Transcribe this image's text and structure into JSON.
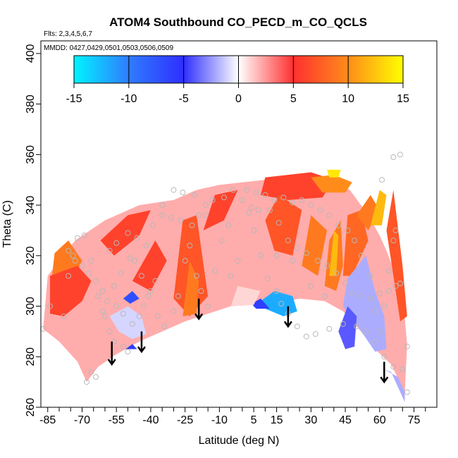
{
  "chart_data": {
    "type": "heatmap",
    "title": "ATOM4 Southbound CO_PECD_m_CO_QCLS",
    "flights_note": "Flts: 2,3,4,5,6,7",
    "dates_note": "MMDD: 0427,0429,0501,0503,0506,0509",
    "xlabel": "Latitude (deg N)",
    "ylabel": "Theta (C)",
    "xlim": [
      -88,
      85
    ],
    "ylim": [
      260,
      405
    ],
    "x_ticks": [
      -85,
      -70,
      -55,
      -40,
      -25,
      -10,
      5,
      15,
      30,
      45,
      60,
      75
    ],
    "x_minor_ticks": [
      -80,
      -75,
      -65,
      -60,
      -50,
      -45,
      -35,
      -30,
      -20,
      -15,
      -5,
      0,
      10,
      20,
      25,
      35,
      40,
      50,
      55,
      65,
      70,
      80
    ],
    "y_ticks": [
      260,
      280,
      300,
      320,
      340,
      360,
      380,
      400
    ],
    "colorbar": {
      "ticks": [
        -15,
        -10,
        -5,
        0,
        5,
        10,
        15
      ],
      "range": [
        -15,
        15
      ],
      "stops": [
        {
          "v": -15,
          "color": "#00f4ff"
        },
        {
          "v": -10,
          "color": "#2f7cff"
        },
        {
          "v": -5,
          "color": "#2f2fff"
        },
        {
          "v": 0,
          "color": "#ffffff"
        },
        {
          "v": 5,
          "color": "#ff3030"
        },
        {
          "v": 10,
          "color": "#ff8c1a"
        },
        {
          "v": 15,
          "color": "#ffff00"
        }
      ]
    },
    "field_polygons": [
      {
        "value": 2,
        "points": [
          [
            -87,
            291
          ],
          [
            -85,
            312
          ],
          [
            -80,
            318
          ],
          [
            -73,
            326
          ],
          [
            -60,
            334
          ],
          [
            -45,
            340
          ],
          [
            -30,
            342
          ],
          [
            -20,
            346
          ],
          [
            -10,
            348
          ],
          [
            0,
            349
          ],
          [
            10,
            350
          ],
          [
            20,
            351
          ],
          [
            30,
            351
          ],
          [
            40,
            349
          ],
          [
            47,
            346
          ],
          [
            55,
            336
          ],
          [
            60,
            328
          ],
          [
            63,
            322
          ],
          [
            68,
            310
          ],
          [
            71,
            295
          ],
          [
            72,
            285
          ],
          [
            71,
            266
          ],
          [
            65,
            277
          ],
          [
            58,
            283
          ],
          [
            50,
            292
          ],
          [
            44,
            298
          ],
          [
            36,
            302
          ],
          [
            25,
            303
          ],
          [
            15,
            301
          ],
          [
            5,
            300.5
          ],
          [
            -5,
            300
          ],
          [
            -15,
            297
          ],
          [
            -25,
            294
          ],
          [
            -35,
            290
          ],
          [
            -45,
            286
          ],
          [
            -55,
            281
          ],
          [
            -63,
            276
          ],
          [
            -68,
            270
          ],
          [
            -72,
            278
          ],
          [
            -80,
            286
          ]
        ]
      },
      {
        "value": 9,
        "points": [
          [
            -84,
            305
          ],
          [
            -82,
            321
          ],
          [
            -76,
            326
          ],
          [
            -70,
            318
          ],
          [
            -74,
            310
          ],
          [
            -80,
            304
          ]
        ]
      },
      {
        "value": 6,
        "points": [
          [
            -84,
            297
          ],
          [
            -84,
            312
          ],
          [
            -72,
            316
          ],
          [
            -66,
            310
          ],
          [
            -70,
            302
          ],
          [
            -78,
            296
          ]
        ]
      },
      {
        "value": 6,
        "points": [
          [
            -62,
            326
          ],
          [
            -50,
            336
          ],
          [
            -40,
            338
          ],
          [
            -45,
            328
          ],
          [
            -56,
            320
          ]
        ]
      },
      {
        "value": 6,
        "points": [
          [
            -48,
            310
          ],
          [
            -38,
            326
          ],
          [
            -33,
            318
          ],
          [
            -40,
            306
          ]
        ]
      },
      {
        "value": 7,
        "points": [
          [
            -30,
            303
          ],
          [
            -26,
            334
          ],
          [
            -20,
            336
          ],
          [
            -15,
            304
          ],
          [
            -23,
            296
          ]
        ]
      },
      {
        "value": 9,
        "points": [
          [
            -26,
            296
          ],
          [
            -23,
            318
          ],
          [
            -19,
            310
          ],
          [
            -20,
            297
          ]
        ]
      },
      {
        "value": 6,
        "points": [
          [
            -17,
            330
          ],
          [
            -12,
            344
          ],
          [
            -2,
            346
          ],
          [
            -8,
            334
          ]
        ]
      },
      {
        "value": 6,
        "points": [
          [
            8,
            344
          ],
          [
            10,
            351
          ],
          [
            30,
            353
          ],
          [
            40,
            350
          ],
          [
            35,
            343
          ],
          [
            20,
            342
          ]
        ]
      },
      {
        "value": 10,
        "points": [
          [
            30,
            351
          ],
          [
            40,
            352
          ],
          [
            48,
            349
          ],
          [
            45,
            345
          ],
          [
            35,
            345
          ]
        ]
      },
      {
        "value": 14,
        "points": [
          [
            37,
            354
          ],
          [
            43,
            354
          ],
          [
            42,
            351
          ],
          [
            38,
            351
          ]
        ]
      },
      {
        "value": 7,
        "points": [
          [
            10,
            334
          ],
          [
            16,
            344
          ],
          [
            26,
            338
          ],
          [
            22,
            320
          ],
          [
            14,
            322
          ]
        ]
      },
      {
        "value": 9,
        "points": [
          [
            26,
            316
          ],
          [
            30,
            336
          ],
          [
            37,
            330
          ],
          [
            33,
            312
          ]
        ]
      },
      {
        "value": 9,
        "points": [
          [
            36,
            308
          ],
          [
            38,
            326
          ],
          [
            43,
            334
          ],
          [
            44,
            316
          ],
          [
            41,
            306
          ]
        ]
      },
      {
        "value": 12,
        "points": [
          [
            38,
            312
          ],
          [
            40,
            330
          ],
          [
            42,
            328
          ],
          [
            41,
            312
          ]
        ]
      },
      {
        "value": 8,
        "points": [
          [
            44,
            312
          ],
          [
            46,
            336
          ],
          [
            52,
            338
          ],
          [
            55,
            326
          ],
          [
            48,
            312
          ]
        ]
      },
      {
        "value": 9,
        "points": [
          [
            50,
            336
          ],
          [
            56,
            344
          ],
          [
            60,
            338
          ],
          [
            55,
            330
          ]
        ]
      },
      {
        "value": 12,
        "points": [
          [
            56,
            332
          ],
          [
            60,
            346
          ],
          [
            63,
            344
          ],
          [
            61,
            332
          ]
        ]
      },
      {
        "value": 7,
        "points": [
          [
            63,
            330
          ],
          [
            66,
            346
          ],
          [
            70,
            316
          ],
          [
            72,
            296
          ],
          [
            69,
            294
          ],
          [
            66,
            312
          ]
        ]
      },
      {
        "value": -2,
        "points": [
          [
            44,
            300
          ],
          [
            46,
            311
          ],
          [
            54,
            320
          ],
          [
            58,
            306
          ],
          [
            62,
            296
          ],
          [
            63,
            283
          ],
          [
            58,
            282
          ],
          [
            52,
            290
          ]
        ]
      },
      {
        "value": -4,
        "points": [
          [
            42,
            290
          ],
          [
            46,
            300
          ],
          [
            50,
            296
          ],
          [
            49,
            284
          ],
          [
            45,
            283
          ]
        ]
      },
      {
        "value": -2,
        "points": [
          [
            62,
            275
          ],
          [
            68,
            272
          ],
          [
            71,
            266
          ],
          [
            71,
            262
          ],
          [
            65,
            274
          ]
        ]
      },
      {
        "value": -12,
        "points": [
          [
            8,
            302
          ],
          [
            14,
            306
          ],
          [
            22,
            304
          ],
          [
            24,
            298
          ],
          [
            18,
            296
          ],
          [
            10,
            299
          ]
        ]
      },
      {
        "value": -6,
        "points": [
          [
            4,
            301
          ],
          [
            8,
            303
          ],
          [
            12,
            299
          ],
          [
            6,
            299
          ]
        ]
      },
      {
        "value": -7,
        "points": [
          [
            -52,
            303
          ],
          [
            -48,
            306
          ],
          [
            -45,
            303
          ],
          [
            -49,
            301
          ]
        ]
      },
      {
        "value": -6,
        "points": [
          [
            -51,
            283
          ],
          [
            -48,
            285
          ],
          [
            -46,
            283
          ]
        ]
      },
      {
        "value": -1,
        "points": [
          [
            -58,
            296
          ],
          [
            -50,
            300
          ],
          [
            -44,
            296
          ],
          [
            -42,
            289
          ],
          [
            -48,
            287
          ],
          [
            -54,
            290
          ]
        ]
      },
      {
        "value": 1,
        "points": [
          [
            -5,
            300
          ],
          [
            5,
            300.5
          ],
          [
            8,
            306
          ],
          [
            -2,
            308
          ]
        ]
      }
    ],
    "arrows": [
      {
        "x": -19,
        "y_top": 303,
        "y_bottom": 295
      },
      {
        "x": -57,
        "y_top": 286,
        "y_bottom": 277
      },
      {
        "x": -44,
        "y_top": 290,
        "y_bottom": 282
      },
      {
        "x": 20,
        "y_top": 300,
        "y_bottom": 292
      },
      {
        "x": 62,
        "y_top": 278,
        "y_bottom": 270
      }
    ],
    "sample_points": [
      [
        -87,
        291
      ],
      [
        -84,
        300
      ],
      [
        -78,
        296
      ],
      [
        -76,
        312
      ],
      [
        -74,
        320
      ],
      [
        -72,
        327
      ],
      [
        -69,
        328
      ],
      [
        -66,
        318
      ],
      [
        -63,
        304
      ],
      [
        -61,
        298
      ],
      [
        -60,
        296
      ],
      [
        -58,
        290
      ],
      [
        -56,
        286
      ],
      [
        -52,
        284
      ],
      [
        -50,
        282
      ],
      [
        -48,
        293
      ],
      [
        -45,
        296
      ],
      [
        -43,
        300
      ],
      [
        -40,
        306
      ],
      [
        -38,
        310
      ],
      [
        -66,
        274
      ],
      [
        -68,
        270
      ],
      [
        -64,
        272
      ],
      [
        -58,
        322
      ],
      [
        -55,
        325
      ],
      [
        -50,
        329
      ],
      [
        -47,
        318
      ],
      [
        -44,
        312
      ],
      [
        -41,
        304
      ],
      [
        -37,
        296
      ],
      [
        -34,
        292
      ],
      [
        -30,
        298
      ],
      [
        -28,
        304
      ],
      [
        -25,
        318
      ],
      [
        -23,
        324
      ],
      [
        -20,
        312
      ],
      [
        -18,
        306
      ],
      [
        -15,
        300
      ],
      [
        -12,
        314
      ],
      [
        -9,
        326
      ],
      [
        -6,
        332
      ],
      [
        -16,
        336
      ],
      [
        -13,
        342
      ],
      [
        -8,
        343
      ],
      [
        -4,
        346
      ],
      [
        2,
        346
      ],
      [
        6,
        345
      ],
      [
        10,
        344
      ],
      [
        14,
        342
      ],
      [
        18,
        343
      ],
      [
        22,
        341
      ],
      [
        26,
        342
      ],
      [
        30,
        340
      ],
      [
        34,
        338
      ],
      [
        38,
        336
      ],
      [
        42,
        332
      ],
      [
        46,
        330
      ],
      [
        49,
        326
      ],
      [
        52,
        320
      ],
      [
        56,
        312
      ],
      [
        58,
        298
      ],
      [
        60,
        290
      ],
      [
        62,
        300
      ],
      [
        64,
        314
      ],
      [
        66,
        326
      ],
      [
        67,
        330
      ],
      [
        3,
        337
      ],
      [
        5,
        330
      ],
      [
        8,
        320
      ],
      [
        11,
        311
      ],
      [
        15,
        306
      ],
      [
        17,
        301
      ],
      [
        20,
        297
      ],
      [
        24,
        292
      ],
      [
        28,
        288
      ],
      [
        32,
        289
      ],
      [
        38,
        291
      ],
      [
        44,
        293
      ],
      [
        50,
        292
      ],
      [
        54,
        290
      ],
      [
        58,
        286
      ],
      [
        62,
        280
      ],
      [
        66,
        276
      ],
      [
        70,
        275
      ],
      [
        72,
        284
      ],
      [
        72,
        266
      ],
      [
        -56,
        308
      ],
      [
        -53,
        313
      ],
      [
        -49,
        319
      ],
      [
        -46,
        327
      ],
      [
        -42,
        324
      ],
      [
        -39,
        332
      ],
      [
        -35,
        336
      ],
      [
        -31,
        335
      ],
      [
        -27,
        334
      ],
      [
        -22,
        332
      ],
      [
        -19,
        336
      ],
      [
        -16,
        340
      ],
      [
        0,
        342
      ],
      [
        4,
        339
      ],
      [
        7,
        338
      ],
      [
        12,
        338
      ],
      [
        16,
        333
      ],
      [
        20,
        326
      ],
      [
        24,
        323
      ],
      [
        28,
        321
      ],
      [
        33,
        318
      ],
      [
        37,
        316
      ],
      [
        41,
        313
      ],
      [
        45,
        309
      ],
      [
        48,
        305
      ],
      [
        52,
        304
      ],
      [
        56,
        303
      ],
      [
        60,
        305
      ],
      [
        64,
        306
      ],
      [
        67,
        308
      ],
      [
        69,
        309
      ],
      [
        -76,
        322
      ],
      [
        -73,
        318
      ],
      [
        -70,
        316
      ],
      [
        -67,
        313
      ],
      [
        -64,
        310
      ],
      [
        -61,
        306
      ],
      [
        -59,
        302
      ],
      [
        -55,
        300
      ],
      [
        -52,
        297
      ],
      [
        -35,
        340
      ],
      [
        -30,
        346
      ],
      [
        -26,
        345
      ],
      [
        -21,
        344
      ],
      [
        66,
        359
      ],
      [
        69,
        360
      ],
      [
        61,
        350
      ],
      [
        15,
        320
      ],
      [
        22,
        318
      ],
      [
        30,
        308
      ],
      [
        36,
        304
      ],
      [
        -2,
        318
      ],
      [
        -5,
        312
      ]
    ]
  }
}
